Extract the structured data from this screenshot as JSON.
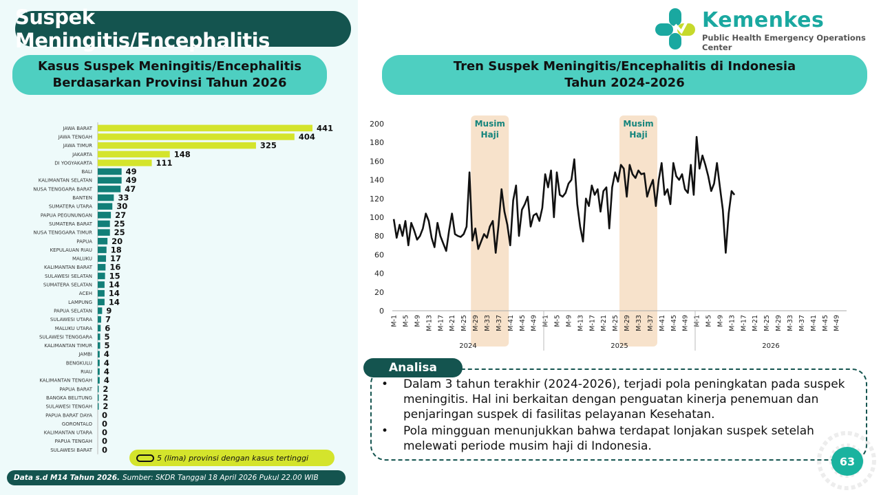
{
  "title": "Suspek Meningitis/Encephalitis",
  "logo": {
    "name": "Kemenkes",
    "subtitle": "Public Health Emergency Operations Center"
  },
  "left_panel": {
    "title_line1": "Kasus Suspek Meningitis/Encephalitis",
    "title_line2": "Berdasarkan Provinsi Tahun 2026"
  },
  "right_panel": {
    "title_line1": "Tren Suspek Meningitis/Encephalitis di Indonesia",
    "title_line2": "Tahun 2024-2026"
  },
  "legend": {
    "text": "5 (lima) provinsi dengan kasus tertinggi"
  },
  "footer": {
    "bold": "Data s.d M14 Tahun 2026.",
    "text": "Sumber: SKDR Tanggal 18 April 2026 Pukul 22.00 WIB"
  },
  "analysis": {
    "label": "Analisa",
    "bullets": [
      "Dalam 3 tahun terakhir (2024-2026), terjadi pola peningkatan pada suspek meningitis. Hal ini berkaitan dengan penguatan kinerja penemuan dan penjaringan suspek di fasilitas pelayanan Kesehatan.",
      "Pola mingguan menunjukkan bahwa terdapat lonjakan suspek setelah melewati periode musim haji di Indonesia."
    ]
  },
  "page_number": "63",
  "colors": {
    "highlight": "#d4e42c",
    "bar": "#127f78",
    "dark": "#14544f",
    "accent": "#4ecfc1",
    "band": "#f7e2cb"
  },
  "chart_data": [
    {
      "type": "bar",
      "orientation": "horizontal",
      "categories": [
        "JAWA BARAT",
        "JAWA TENGAH",
        "JAWA TIMUR",
        "JAKARTA",
        "DI YOGYAKARTA",
        "BALI",
        "KALIMANTAN SELATAN",
        "NUSA TENGGARA BARAT",
        "BANTEN",
        "SUMATERA UTARA",
        "PAPUA PEGUNUNGAN",
        "SUMATERA BARAT",
        "NUSA TENGGARA TIMUR",
        "PAPUA",
        "KEPULAUAN RIAU",
        "MALUKU",
        "KALIMANTAN BARAT",
        "SULAWESI SELATAN",
        "SUMATERA SELATAN",
        "ACEH",
        "LAMPUNG",
        "PAPUA SELATAN",
        "SULAWESI UTARA",
        "MALUKU UTARA",
        "SULAWESI TENGGARA",
        "KALIMANTAN TIMUR",
        "JAMBI",
        "BENGKULU",
        "RIAU",
        "KALIMANTAN TENGAH",
        "PAPUA BARAT",
        "BANGKA BELITUNG",
        "SULAWESI TENGAH",
        "PAPUA BARAT DAYA",
        "GORONTALO",
        "KALIMANTAN UTARA",
        "PAPUA TENGAH",
        "SULAWESI BARAT"
      ],
      "values": [
        441,
        404,
        325,
        148,
        111,
        49,
        49,
        47,
        33,
        30,
        27,
        25,
        25,
        20,
        18,
        17,
        16,
        15,
        14,
        14,
        14,
        9,
        7,
        6,
        5,
        5,
        4,
        4,
        4,
        4,
        2,
        2,
        2,
        0,
        0,
        0,
        0,
        0
      ],
      "highlight_top": 5,
      "xlim": [
        0,
        441
      ]
    },
    {
      "type": "line",
      "ylim": [
        0,
        200
      ],
      "yticks": [
        0,
        20,
        40,
        60,
        80,
        100,
        120,
        140,
        160,
        180,
        200
      ],
      "years": [
        "2024",
        "2025",
        "2026"
      ],
      "week_ticks": [
        "M-1",
        "M-5",
        "M-9",
        "M-13",
        "M-17",
        "M-21",
        "M-25",
        "M-29",
        "M-33",
        "M-37",
        "M-41",
        "M-45",
        "M-49"
      ],
      "weeks_per_year": 52,
      "bands": [
        {
          "label_line1": "Musim",
          "label_line2": "Haji",
          "start_week": 27,
          "end_week": 40
        },
        {
          "label_line1": "Musim",
          "label_line2": "Haji",
          "start_week": 78,
          "end_week": 91
        }
      ],
      "series": [
        {
          "values": [
            98,
            78,
            92,
            80,
            96,
            70,
            94,
            86,
            76,
            80,
            88,
            104,
            96,
            78,
            68,
            94,
            80,
            72,
            64,
            86,
            104,
            82,
            80,
            79,
            82,
            90,
            148,
            75,
            88,
            66,
            74,
            82,
            78,
            90,
            96,
            62,
            92,
            130,
            106,
            92,
            70,
            118,
            134,
            80,
            108,
            114,
            122,
            90,
            102,
            104,
            96,
            110,
            146,
            132,
            150,
            100,
            148,
            124,
            122,
            126,
            136,
            140,
            162,
            114,
            90,
            74,
            120,
            112,
            134,
            124,
            130,
            106,
            128,
            132,
            88,
            132,
            148,
            138,
            156,
            152,
            122,
            156,
            146,
            142,
            150,
            146,
            147,
            122,
            132,
            140,
            112,
            140,
            158,
            124,
            130,
            114,
            158,
            144,
            140,
            146,
            130,
            126,
            156,
            124,
            186,
            152,
            166,
            156,
            144,
            128,
            136,
            158,
            132,
            108,
            62,
            104,
            128,
            124
          ]
        }
      ]
    }
  ]
}
